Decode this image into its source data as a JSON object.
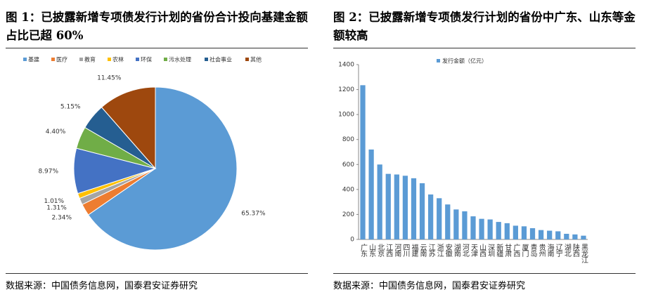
{
  "chart_data": [
    {
      "type": "pie",
      "title": "图 1：已披露新增专项债发行计划的省份合计投向基建金额占比已超 60%",
      "categories": [
        "基建",
        "医疗",
        "教育",
        "农林",
        "环保",
        "污水处理",
        "社会事业",
        "其他"
      ],
      "values": [
        65.37,
        2.34,
        1.31,
        1.01,
        8.97,
        4.4,
        5.15,
        11.45
      ],
      "value_labels": [
        "65.37%",
        "2.34%",
        "1.31%",
        "1.01%",
        "8.97%",
        "4.40%",
        "5.15%",
        "11.45%"
      ],
      "colors": [
        "#5b9bd5",
        "#ed7d31",
        "#a5a5a5",
        "#ffc000",
        "#4472c4",
        "#70ad47",
        "#255e91",
        "#9e480e"
      ],
      "legend": "top",
      "source": "数据来源：中国债务信息网，国泰君安证券研究"
    },
    {
      "type": "bar",
      "title": "图 2：已披露新增专项债发行计划的省份中广东、山东等金额较高",
      "categories": [
        "广东",
        "山东",
        "北京",
        "江西",
        "河南",
        "四川",
        "福建",
        "云南",
        "江苏",
        "浙江",
        "安徽",
        "湖南",
        "河北",
        "天津",
        "山西",
        "深圳",
        "新疆",
        "甘肃",
        "广西",
        "厦门",
        "青岛",
        "贵州",
        "海南",
        "辽宁",
        "湖北",
        "陕西",
        "黑龙江"
      ],
      "series": [
        {
          "name": "发行金额（亿元）",
          "color": "#5b9bd5",
          "values": [
            1235,
            720,
            600,
            525,
            520,
            510,
            490,
            450,
            360,
            330,
            280,
            240,
            225,
            185,
            165,
            160,
            140,
            130,
            110,
            105,
            90,
            75,
            70,
            65,
            45,
            40,
            30
          ]
        }
      ],
      "ylim": [
        0,
        1400
      ],
      "yticks": [
        0,
        200,
        400,
        600,
        800,
        1000,
        1200,
        1400
      ],
      "legend": "top",
      "source": "数据来源：中国债务信息网，国泰君安证券研究"
    }
  ]
}
